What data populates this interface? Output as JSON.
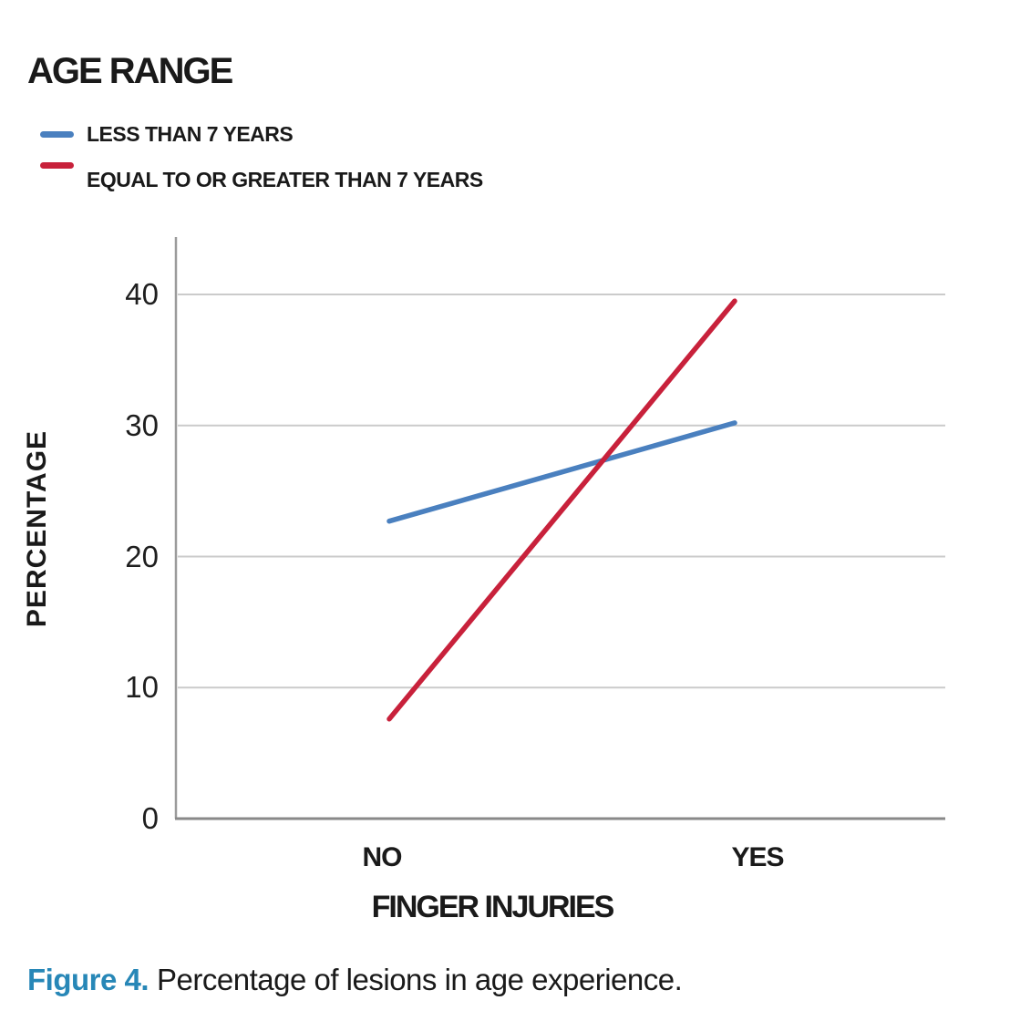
{
  "legend": {
    "title": "AGE RANGE",
    "items": [
      {
        "label": "LESS THAN 7 YEARS",
        "color": "#4a80bf"
      },
      {
        "label": "EQUAL TO OR GREATER THAN 7 YEARS",
        "color": "#c8213b"
      }
    ]
  },
  "chart_data": {
    "type": "line",
    "categories": [
      "NO",
      "YES"
    ],
    "series": [
      {
        "name": "LESS THAN 7 YEARS",
        "color": "#4a80bf",
        "values": [
          22.7,
          30.2
        ]
      },
      {
        "name": "EQUAL TO OR GREATER THAN 7 YEARS",
        "color": "#c8213b",
        "values": [
          7.6,
          39.5
        ]
      }
    ],
    "title": "",
    "xlabel": "FINGER INJURIES",
    "ylabel": "PERCENTAGE",
    "yticks": [
      0,
      10,
      20,
      30,
      40
    ],
    "ylim": [
      0,
      44.4
    ],
    "grid": "horizontal",
    "legend_title": "AGE RANGE",
    "legend_position": "top-left"
  },
  "caption": {
    "label": "Figure 4.",
    "text": "Percentage of lesions in age experience.",
    "label_color": "#2787b7"
  },
  "style_colors": {
    "gridline": "#cbcbcb",
    "y_axis": "#9b9b9b",
    "baseline": "#898989",
    "text": "#1a1a1a"
  }
}
